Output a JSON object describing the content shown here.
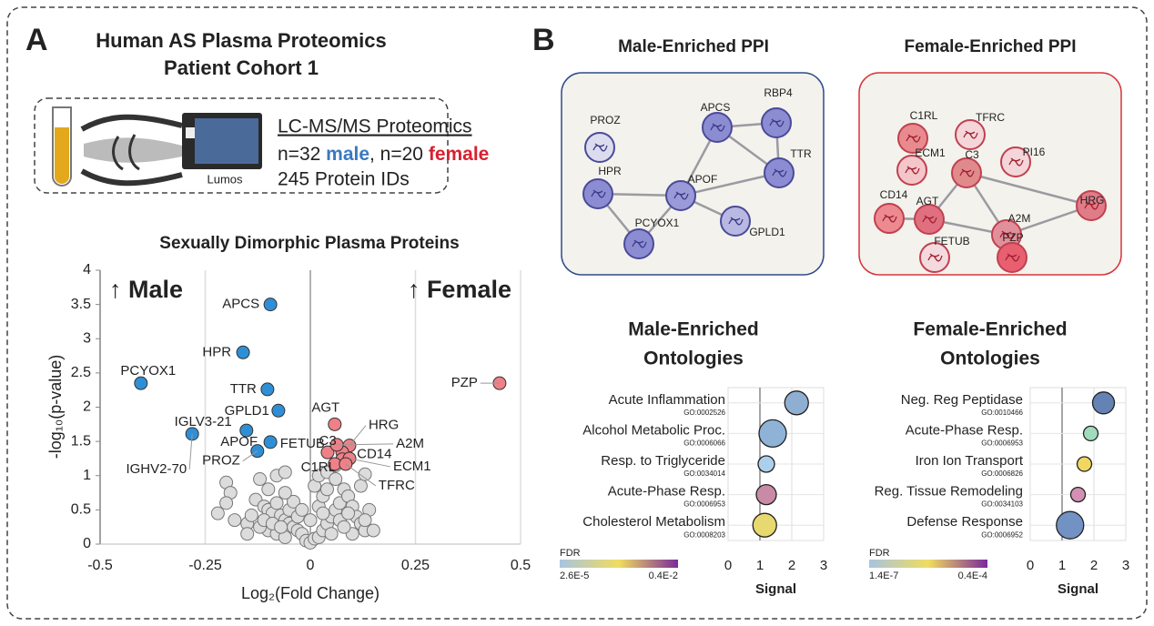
{
  "panel_a": {
    "letter": "A",
    "title": [
      "Human AS Plasma Proteomics",
      "Patient Cohort 1"
    ],
    "method": "LC-MS/MS Proteomics",
    "cohort": [
      "n=32 ",
      "male",
      ", n=20 ",
      "female"
    ],
    "proteins": "245 Protein IDs",
    "instrument": "Lumos"
  },
  "panel_b": {
    "letter": "B"
  },
  "networks": [
    {
      "title": "Male-Enriched PPI",
      "border": "#2f4a8a",
      "nodes": [
        {
          "label": "PROZ",
          "color": "#dcdcef"
        },
        {
          "label": "APCS",
          "color": "#8c8cd2"
        },
        {
          "label": "RBP4",
          "color": "#8c8cd2"
        },
        {
          "label": "TTR",
          "color": "#8c8cd2"
        },
        {
          "label": "HPR",
          "color": "#8c8cd2"
        },
        {
          "label": "APOF",
          "color": "#9a9ad8"
        },
        {
          "label": "GPLD1",
          "color": "#b8b8e2"
        },
        {
          "label": "PCYOX1",
          "color": "#8c8cd2"
        }
      ],
      "edges": [
        [
          1,
          2
        ],
        [
          1,
          3
        ],
        [
          2,
          3
        ],
        [
          1,
          5
        ],
        [
          5,
          3
        ],
        [
          4,
          5
        ],
        [
          4,
          7
        ],
        [
          5,
          7
        ],
        [
          5,
          6
        ]
      ]
    },
    {
      "title": "Female-Enriched PPI",
      "border": "#d8343c",
      "nodes": [
        {
          "label": "C1RL",
          "color": "#e88a8e"
        },
        {
          "label": "TFRC",
          "color": "#f4d6da"
        },
        {
          "label": "ECM1",
          "color": "#f4c6ca"
        },
        {
          "label": "PI16",
          "color": "#f4d6da"
        },
        {
          "label": "C3",
          "color": "#e08a8c"
        },
        {
          "label": "CD14",
          "color": "#ec8a90"
        },
        {
          "label": "AGT",
          "color": "#e07080"
        },
        {
          "label": "HRG",
          "color": "#e07c88"
        },
        {
          "label": "A2M",
          "color": "#e0909a"
        },
        {
          "label": "FETUB",
          "color": "#f4dade"
        },
        {
          "label": "PZP",
          "color": "#e86070"
        }
      ],
      "edges": [
        [
          4,
          6
        ],
        [
          4,
          8
        ],
        [
          4,
          7
        ],
        [
          6,
          8
        ],
        [
          8,
          7
        ],
        [
          8,
          10
        ],
        [
          5,
          6
        ]
      ]
    }
  ],
  "chart_data": [
    {
      "type": "scatter",
      "title": "Sexually Dimorphic Plasma Proteins",
      "xlabel": "Log₂(Fold Change)",
      "ylabel": "-log₁₀(p-value)",
      "annotations": [
        {
          "text": "↑ Male",
          "color": "#3a78c0"
        },
        {
          "text": "↑ Female",
          "color": "#d8202e"
        }
      ],
      "xlim": [
        -0.5,
        0.5
      ],
      "xticks": [
        -0.5,
        -0.25,
        0,
        0.25,
        0.5
      ],
      "ylim": [
        0,
        4
      ],
      "yticks": [
        0,
        0.5,
        1,
        1.5,
        2,
        2.5,
        3,
        3.5,
        4
      ],
      "grid": "x",
      "series": [
        {
          "color": "#dcdcdc",
          "x": [
            -0.2,
            -0.19,
            -0.2,
            -0.22,
            -0.18,
            -0.15,
            -0.12,
            -0.13,
            -0.11,
            -0.1,
            -0.09,
            -0.08,
            -0.07,
            -0.06,
            -0.05,
            -0.04,
            -0.03,
            -0.02,
            -0.01,
            0,
            0.01,
            -0.1,
            -0.08,
            -0.06,
            -0.12,
            -0.14,
            -0.11,
            -0.09,
            -0.07,
            -0.05,
            -0.04,
            -0.03,
            -0.06,
            -0.08,
            -0.06,
            -0.1,
            0.02,
            0.03,
            0.04,
            0.05,
            0.06,
            0.07,
            0.02,
            0.03,
            0.01,
            0.02,
            0.04,
            0.06,
            0.08,
            0.09,
            0.1,
            0.11,
            0.12,
            0.13,
            0.1,
            0.07,
            0.05,
            0.08,
            0.09,
            0.04,
            0.06,
            0.12,
            0.13,
            0.14,
            0.13,
            0.03,
            -0.15,
            -0.02,
            0,
            0.15
          ],
          "values": [
            0.9,
            0.75,
            0.6,
            0.45,
            0.35,
            0.3,
            0.95,
            0.65,
            0.55,
            0.5,
            0.45,
            0.6,
            0.42,
            0.35,
            0.3,
            0.25,
            0.2,
            0.15,
            0.05,
            0.02,
            0.08,
            0.2,
            0.15,
            0.1,
            0.25,
            0.42,
            0.35,
            0.3,
            0.25,
            0.5,
            0.62,
            0.4,
            0.75,
            1,
            1.05,
            0.8,
            0.1,
            0.2,
            0.3,
            0.4,
            0.5,
            0.6,
            0.55,
            0.7,
            0.85,
            1,
            1.05,
            0.95,
            0.8,
            0.7,
            0.55,
            0.4,
            0.3,
            0.2,
            0.15,
            0.35,
            0.15,
            0.25,
            0.45,
            0.8,
            1.15,
            0.85,
            1.02,
            0.5,
            0.35,
            0.45,
            0.15,
            0.5,
            0.35,
            0.2
          ]
        },
        {
          "color": "#2f8fd6",
          "labels": [
            "APCS",
            "HPR",
            "PCYOX1",
            "TTR",
            "GPLD1",
            "IGLV3-21",
            "APOF",
            "PROZ",
            "IGHV2-70"
          ],
          "x": [
            -0.095,
            -0.16,
            -0.403,
            -0.102,
            -0.076,
            -0.152,
            -0.095,
            -0.126,
            -0.281
          ],
          "values": [
            3.5,
            2.8,
            2.35,
            2.26,
            1.95,
            1.66,
            1.49,
            1.36,
            1.61
          ]
        },
        {
          "color": "#f08088",
          "labels": [
            "PZP",
            "AGT",
            "HRG",
            "C3",
            "FETUB",
            "A2M",
            "CD14",
            "ECM1",
            "C1RL",
            "TFRC"
          ],
          "x": [
            0.45,
            0.058,
            0.093,
            0.076,
            0.041,
            0.063,
            0.076,
            0.093,
            0.058,
            0.084
          ],
          "values": [
            2.35,
            1.75,
            1.44,
            1.34,
            1.34,
            1.45,
            1.24,
            1.25,
            1.17,
            1.17
          ]
        }
      ]
    },
    {
      "type": "bubble",
      "title": [
        "Male-Enriched",
        "Ontologies"
      ],
      "categories": [
        "Acute Inflammation",
        "Alcohol Metabolic Proc.",
        "Resp. to Triglyceride",
        "Acute-Phase Resp.",
        "Cholesterol Metabolism"
      ],
      "go_ids": [
        "GO:0002526",
        "GO:0006066",
        "GO:0034014",
        "GO:0006953",
        "GO:0008203"
      ],
      "values": [
        2.15,
        1.4,
        1.2,
        1.2,
        1.15
      ],
      "sizes": [
        13,
        15,
        9,
        11,
        13
      ],
      "colors": [
        "#8fafd2",
        "#8fb3d6",
        "#acd0ec",
        "#c98aa8",
        "#e8d870"
      ],
      "xlim": [
        0,
        3
      ],
      "xticks": [
        0,
        1,
        2,
        3
      ],
      "xlabel": "Signal",
      "colorbar": {
        "label": "FDR",
        "min_label": "2.6E-5",
        "max_label": "0.4E-2",
        "colors": [
          "#a8c4e0",
          "#f0dc60",
          "#7a2a9a"
        ]
      }
    },
    {
      "type": "bubble",
      "title": [
        "Female-Enriched",
        "Ontologies"
      ],
      "categories": [
        "Neg. Reg Peptidase",
        "Acute-Phase Resp.",
        "Iron Ion Transport",
        "Reg. Tissue Remodeling",
        "Defense Response"
      ],
      "go_ids": [
        "GO:0010466",
        "GO:0006953",
        "GO:0006826",
        "GO:0034103",
        "GO:0006952"
      ],
      "values": [
        2.3,
        1.9,
        1.7,
        1.5,
        1.25
      ],
      "sizes": [
        12,
        8,
        8,
        8,
        15
      ],
      "colors": [
        "#6482b4",
        "#a0dcbc",
        "#f0d860",
        "#d490b2",
        "#7292c4"
      ],
      "xlim": [
        0,
        3
      ],
      "xticks": [
        0,
        1,
        2,
        3
      ],
      "xlabel": "Signal",
      "colorbar": {
        "label": "FDR",
        "min_label": "1.4E-7",
        "max_label": "0.4E-4",
        "colors": [
          "#a8c4e0",
          "#f0dc60",
          "#7a2a9a"
        ]
      }
    }
  ]
}
